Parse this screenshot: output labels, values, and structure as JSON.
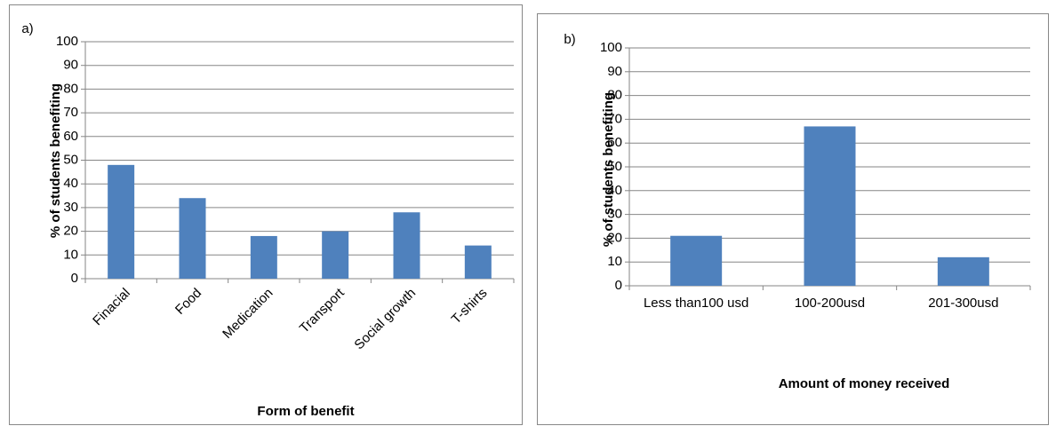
{
  "chart_data": [
    {
      "type": "bar",
      "annotation": "a)",
      "x_label": "Form of benefit",
      "y_label": "% of students benefiting",
      "categories": [
        "Finacial",
        "Food",
        "Medication",
        "Transport",
        "Social growth",
        "T-shirts"
      ],
      "values": [
        48,
        34,
        18,
        20,
        28,
        14
      ],
      "color": "#4f81bd",
      "ylim": [
        0,
        100
      ],
      "yticks": [
        0,
        10,
        20,
        30,
        40,
        50,
        60,
        70,
        80,
        90,
        100
      ],
      "grid": true,
      "label_rotation": -45
    },
    {
      "type": "bar",
      "annotation": "b)",
      "x_label": "Amount of money received",
      "y_label": "% of students benefiting",
      "categories": [
        "Less than100 usd",
        "100-200usd",
        "201-300usd"
      ],
      "values": [
        21,
        67,
        12
      ],
      "color": "#4f81bd",
      "ylim": [
        0,
        100
      ],
      "yticks": [
        0,
        10,
        20,
        30,
        40,
        50,
        60,
        70,
        80,
        90,
        100
      ],
      "grid": true,
      "label_rotation": 0
    }
  ]
}
